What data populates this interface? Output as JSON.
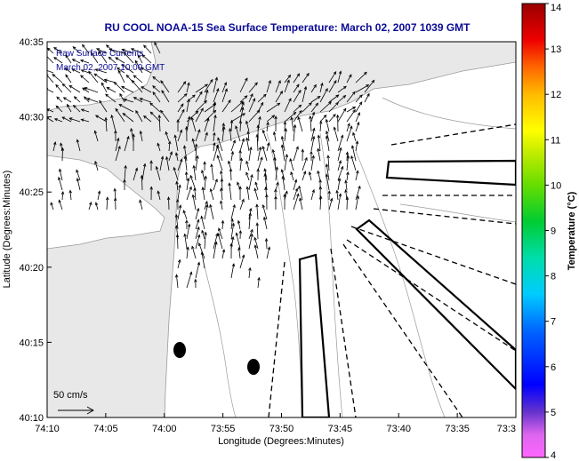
{
  "chart_data": {
    "type": "vector-field",
    "title": "RU COOL  NOAA-15  Sea Surface Temperature:  March 02, 2007 1039 GMT",
    "inset_lines": [
      "Raw Surface Currents",
      "March 02, 2007 10:00 GMT"
    ],
    "xlabel": "Longitude (Degrees:Minutes)",
    "ylabel": "Latitude (Degrees:Minutes)",
    "x_ticks": [
      "74:10",
      "74:05",
      "74:00",
      "73:55",
      "73:50",
      "73:45",
      "73:40",
      "73:35",
      "73:3"
    ],
    "y_ticks": [
      "40:35",
      "40:30",
      "40:25",
      "40:20",
      "40:15",
      "40:10"
    ],
    "xlim": [
      "74:10",
      "73:30"
    ],
    "ylim": [
      "40:10",
      "40:35"
    ],
    "scale_label": "50 cm/s",
    "colorbar": {
      "label": "Temperature (°C)",
      "ticks": [
        "4",
        "5",
        "6",
        "7",
        "8",
        "9",
        "10",
        "11",
        "12",
        "13",
        "14"
      ],
      "range": [
        4,
        14
      ]
    },
    "features": [
      "land shaded grey",
      "bathymetry contours",
      "HF radar current vectors",
      "dashed radial sectors",
      "outlined zones",
      "two black markers"
    ]
  }
}
